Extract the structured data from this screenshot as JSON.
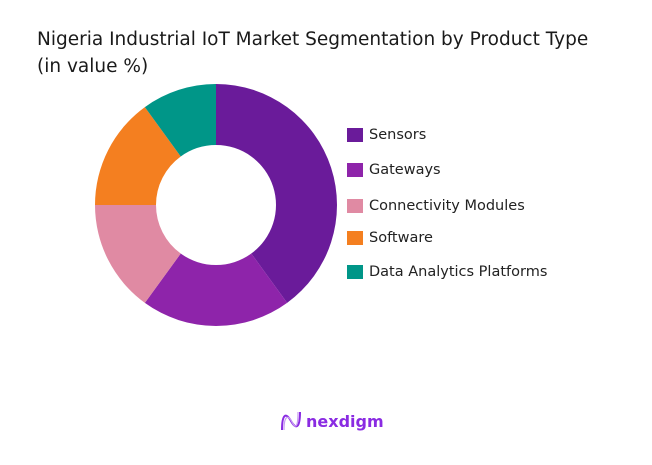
{
  "chart_data": {
    "type": "pie",
    "donut": true,
    "title_line1": "Nigeria Industrial IoT Market Segmentation by Product Type",
    "title_line2": "(in value %)",
    "categories": [
      "Sensors",
      "Gateways",
      "Connectivity Modules",
      "Software",
      "Data Analytics Platforms"
    ],
    "values": [
      40,
      20,
      15,
      15,
      10
    ],
    "colors": [
      "#6a1b9a",
      "#8e24aa",
      "#e08aa3",
      "#f47f20",
      "#009688"
    ],
    "legend_position": "right"
  },
  "brand": {
    "name": "nexdigm",
    "color": "#8a2be2"
  }
}
